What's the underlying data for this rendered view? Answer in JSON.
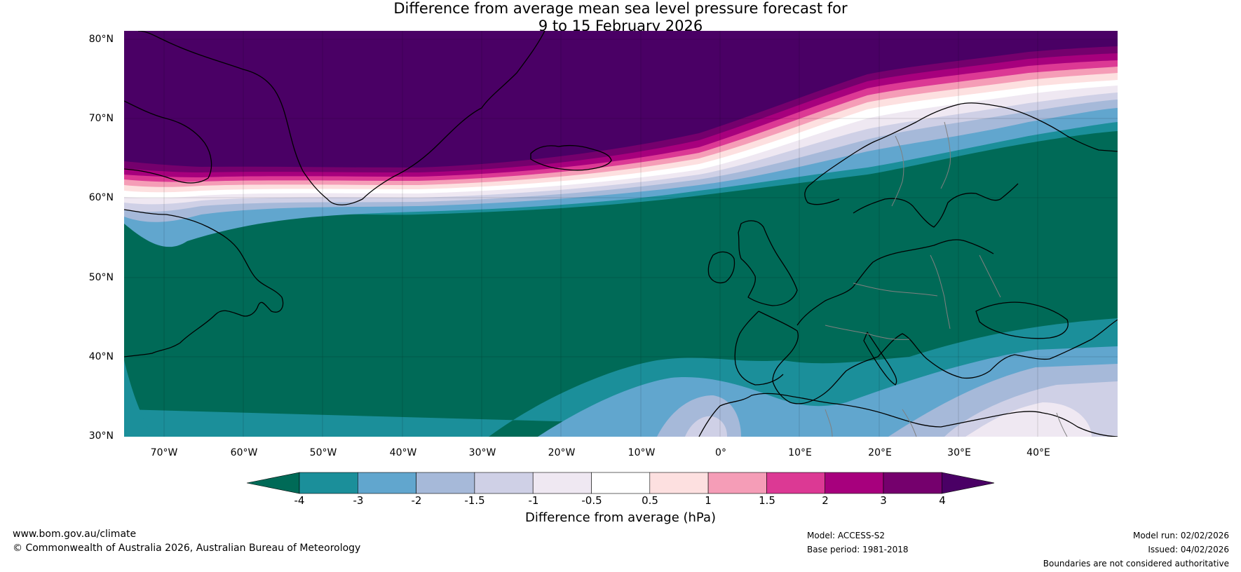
{
  "title": {
    "line1": "Difference from average mean sea level pressure forecast for",
    "line2": "9 to 15 February 2026"
  },
  "axes": {
    "lat_ticks": [
      "80°N",
      "70°N",
      "60°N",
      "50°N",
      "40°N",
      "30°N"
    ],
    "lon_ticks": [
      "70°W",
      "60°W",
      "50°W",
      "40°W",
      "30°W",
      "20°W",
      "10°W",
      "0°",
      "10°E",
      "20°E",
      "30°E",
      "40°E"
    ],
    "lat_range": [
      30,
      81
    ],
    "lon_range": [
      -75,
      50
    ]
  },
  "colorbar": {
    "ticks": [
      "-4",
      "-3",
      "-2",
      "-1.5",
      "-1",
      "-0.5",
      "0.5",
      "1",
      "1.5",
      "2",
      "3",
      "4"
    ],
    "colors": [
      "#006a57",
      "#1b8f9a",
      "#61a6ce",
      "#a6b9d9",
      "#cfd0e6",
      "#efe8f2",
      "#ffffff",
      "#fde0e0",
      "#f59db7",
      "#dc3994",
      "#a7007d",
      "#75006d",
      "#4a0065"
    ],
    "label": "Difference from average (hPa)"
  },
  "map": {
    "ocean_anomaly_color": "#006a57",
    "high_anomaly_color": "#4a0065",
    "coastline_color": "#000000",
    "border_color": "#808080"
  },
  "footer": {
    "url": "www.bom.gov.au/climate",
    "copyright": "© Commonwealth of Australia 2026, Australian Bureau of Meteorology",
    "model": "Model: ACCESS-S2",
    "base_period": "Base period: 1981-2018",
    "model_run": "Model run: 02/02/2026",
    "issued": "Issued: 04/02/2026",
    "disclaimer": "Boundaries are not considered authoritative"
  }
}
